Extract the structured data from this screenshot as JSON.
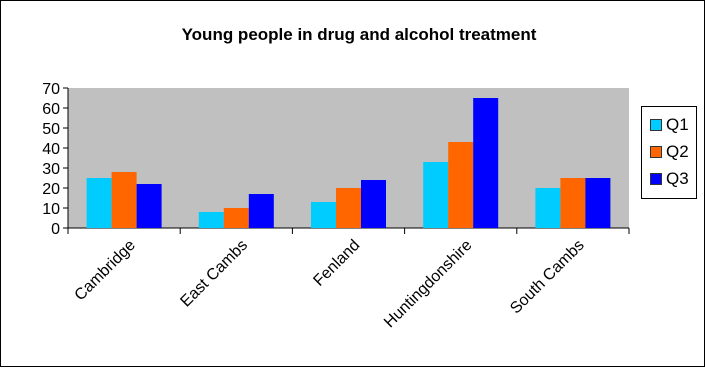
{
  "chart_data": {
    "type": "bar",
    "title": "Young people in drug and alcohol treatment",
    "xlabel": "",
    "ylabel": "",
    "categories": [
      "Cambridge",
      "East Cambs",
      "Fenland",
      "Huntingdonshire",
      "South Cambs"
    ],
    "series": [
      {
        "name": "Q1",
        "color": "#00ccff",
        "values": [
          25,
          8,
          13,
          33,
          20
        ]
      },
      {
        "name": "Q2",
        "color": "#ff6600",
        "values": [
          28,
          10,
          20,
          43,
          25
        ]
      },
      {
        "name": "Q3",
        "color": "#0000ff",
        "values": [
          22,
          17,
          24,
          65,
          25
        ]
      }
    ],
    "ylim": [
      0,
      70
    ],
    "yticks": [
      0,
      10,
      20,
      30,
      40,
      50,
      60,
      70
    ],
    "grid": false,
    "plot_background": "#c0c0c0",
    "legend_position": "right"
  }
}
